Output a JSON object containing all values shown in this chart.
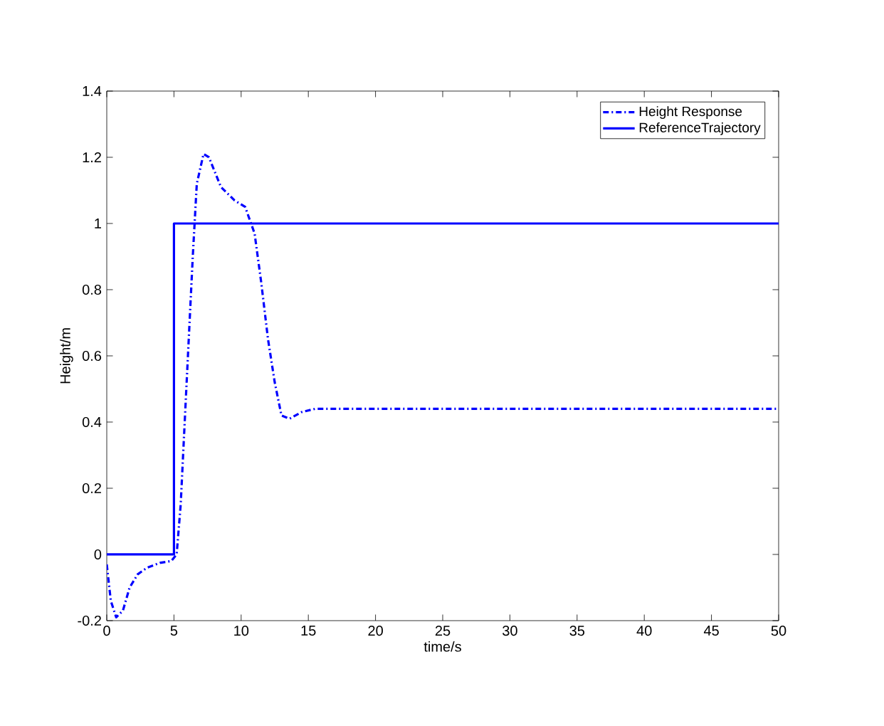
{
  "chart_data": {
    "type": "line",
    "xlabel": "time/s",
    "ylabel": "Height/m",
    "xlim": [
      0,
      50
    ],
    "ylim": [
      -0.2,
      1.4
    ],
    "xticks": [
      0,
      5,
      10,
      15,
      20,
      25,
      30,
      35,
      40,
      45,
      50
    ],
    "yticks": [
      -0.2,
      0,
      0.2,
      0.4,
      0.6,
      0.8,
      1,
      1.2,
      1.4
    ],
    "grid": false,
    "legend": "top right",
    "marker": "none",
    "series": [
      {
        "name": "Height Response",
        "color": "#0000ff",
        "line_style": "dashdot",
        "x": [
          0,
          0.3,
          0.7,
          1.2,
          1.7,
          2.3,
          3,
          4,
          4.8,
          5.2,
          5.5,
          5.8,
          6.1,
          6.4,
          6.7,
          7.2,
          7.6,
          8.5,
          9.5,
          10.3,
          11,
          11.5,
          12,
          12.5,
          13,
          13.6,
          14.5,
          15.5,
          20,
          30,
          40,
          50
        ],
        "values": [
          -0.03,
          -0.14,
          -0.19,
          -0.17,
          -0.1,
          -0.06,
          -0.04,
          -0.025,
          -0.02,
          0.0,
          0.15,
          0.4,
          0.65,
          0.9,
          1.12,
          1.21,
          1.2,
          1.11,
          1.07,
          1.05,
          0.97,
          0.82,
          0.65,
          0.52,
          0.42,
          0.41,
          0.43,
          0.44,
          0.44,
          0.44,
          0.44,
          0.44
        ]
      },
      {
        "name": "ReferenceTrajectory",
        "color": "#0000ff",
        "line_style": "solid",
        "x": [
          0,
          5,
          5,
          50
        ],
        "values": [
          0,
          0,
          1,
          1
        ]
      }
    ]
  }
}
